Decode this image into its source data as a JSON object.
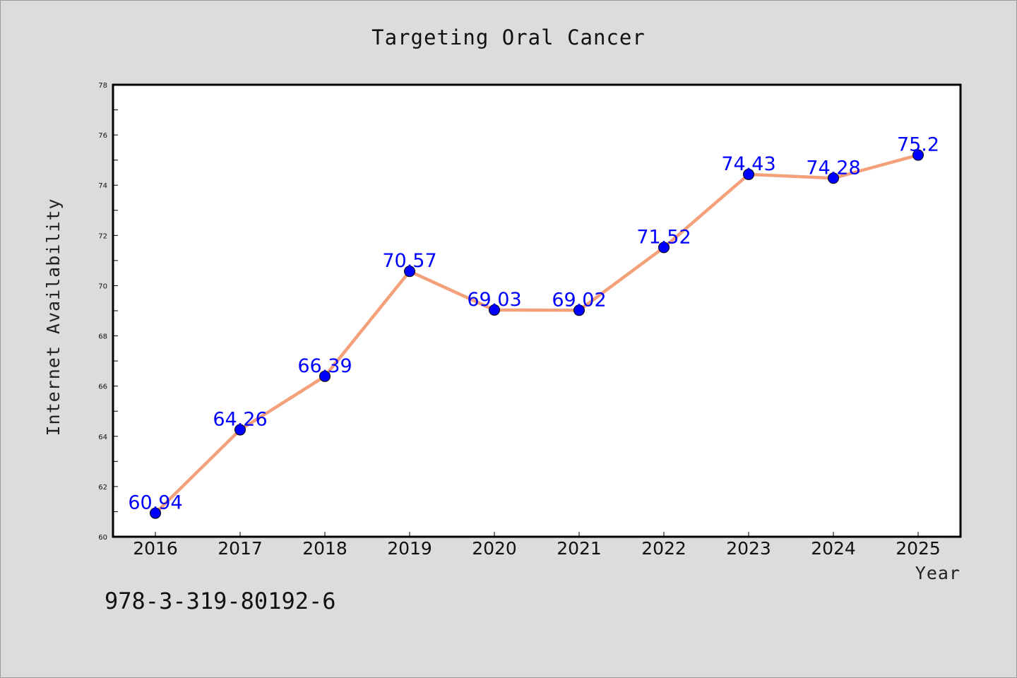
{
  "chart_data": {
    "type": "line",
    "title": "Targeting Oral Cancer",
    "xlabel": "Year",
    "ylabel": "Internet Availability",
    "categories": [
      "2016",
      "2017",
      "2018",
      "2019",
      "2020",
      "2021",
      "2022",
      "2023",
      "2024",
      "2025"
    ],
    "series": [
      {
        "values": [
          60.94,
          64.26,
          66.39,
          70.57,
          69.03,
          69.02,
          71.52,
          74.43,
          74.28,
          75.2
        ],
        "labels": [
          "60.94",
          "64.26",
          "66.39",
          "70.57",
          "69.03",
          "69.02",
          "71.52",
          "74.43",
          "74.28",
          "75.2"
        ],
        "line_color": "#f4a07a",
        "marker_color": "#0000ff"
      }
    ],
    "ylim": [
      60,
      78
    ],
    "yticks": [
      "60",
      "62",
      "64",
      "66",
      "68",
      "70",
      "72",
      "74",
      "76",
      "78"
    ],
    "grid": false,
    "legend": "none",
    "background": "#dcdcdc",
    "plot_background": "#ffffff"
  },
  "footer": {
    "code": "978-3-319-80192-6"
  }
}
